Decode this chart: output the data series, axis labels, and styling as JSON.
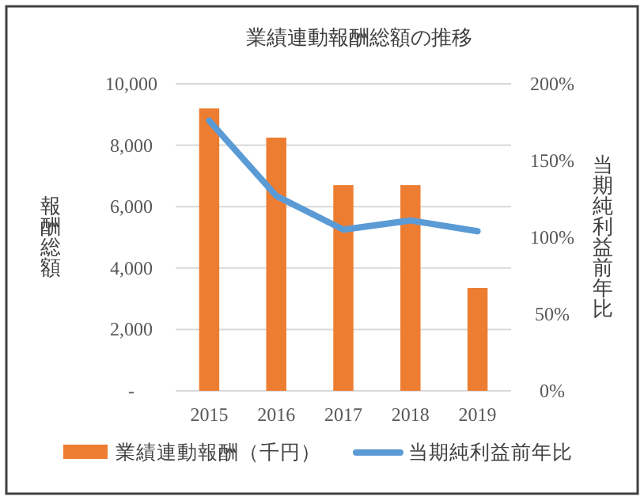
{
  "chart_data": {
    "type": "bar",
    "title": "業績連動報酬総額の推移",
    "ylabel": "報酬総額",
    "y2label": "当期純利益前年比",
    "categories": [
      "2015",
      "2016",
      "2017",
      "2018",
      "2019"
    ],
    "series": [
      {
        "name": "業績連動報酬（千円）",
        "color": "#ed7d31",
        "values": [
          9200,
          8250,
          6700,
          6700,
          3350
        ]
      },
      {
        "name": "当期純利益前年比",
        "type": "line",
        "axis": "y2",
        "color": "#5b9bd5",
        "values": [
          176,
          127,
          105,
          111,
          104
        ]
      }
    ],
    "ylim": [
      0,
      10000
    ],
    "yticks": [
      {
        "value": 0,
        "label": "-"
      },
      {
        "value": 2000,
        "label": "2,000"
      },
      {
        "value": 4000,
        "label": "4,000"
      },
      {
        "value": 6000,
        "label": "6,000"
      },
      {
        "value": 8000,
        "label": "8,000"
      },
      {
        "value": 10000,
        "label": "10,000"
      }
    ],
    "y2lim": [
      0,
      200
    ],
    "y2ticks": [
      {
        "value": 0,
        "label": "0%"
      },
      {
        "value": 50,
        "label": "50%"
      },
      {
        "value": 100,
        "label": "100%"
      },
      {
        "value": 150,
        "label": "150%"
      },
      {
        "value": 200,
        "label": "200%"
      }
    ],
    "grid": "y",
    "legend": "bottom",
    "marker": "none",
    "line_style": "solid"
  }
}
